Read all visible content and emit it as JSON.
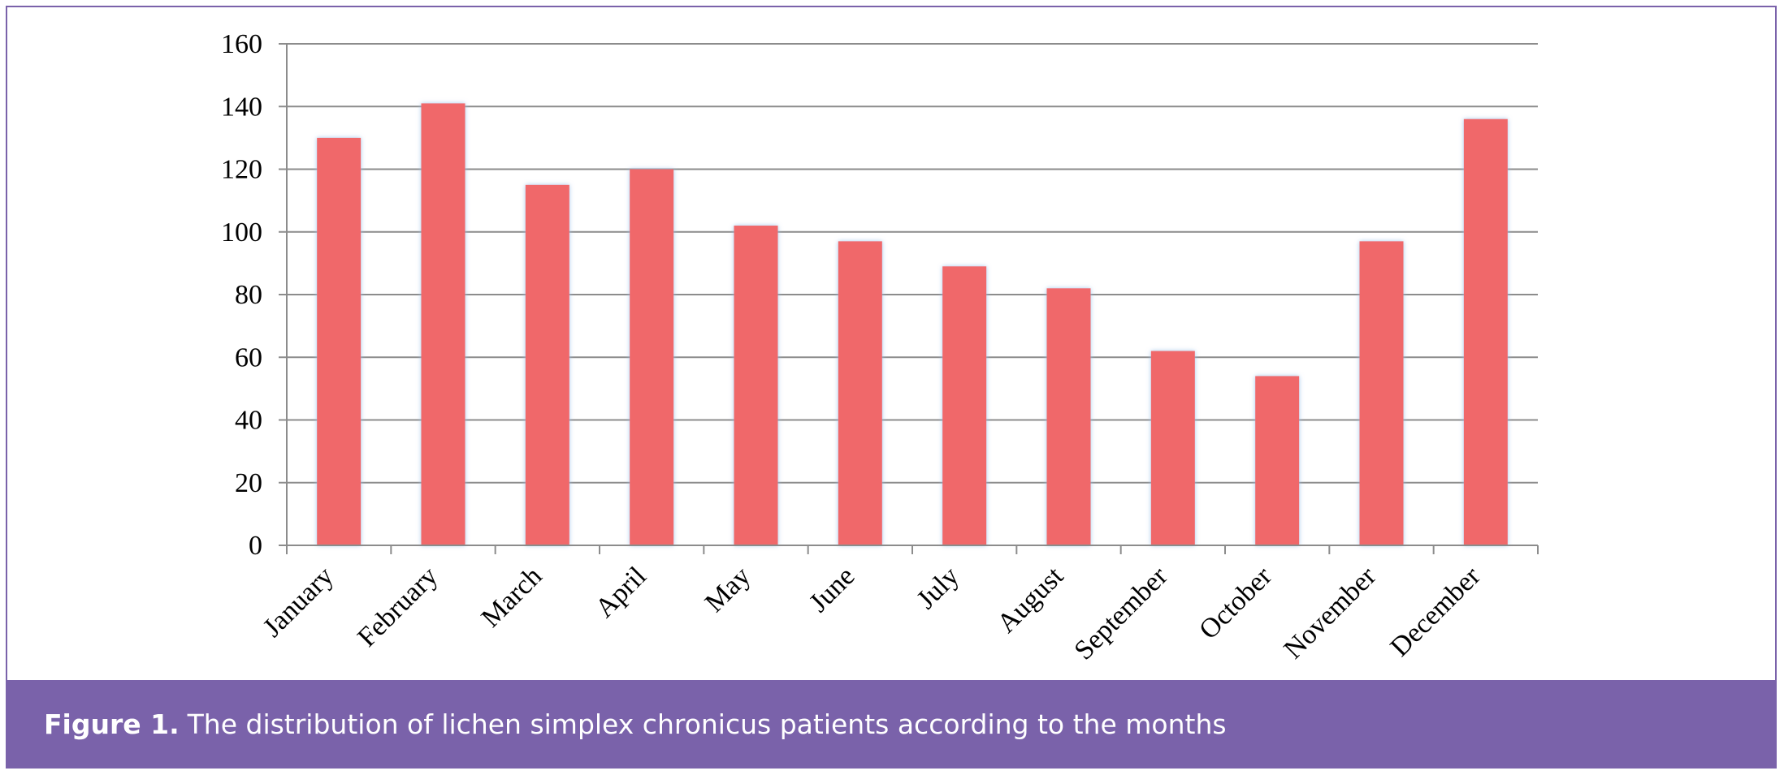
{
  "caption": {
    "label": "Figure 1.",
    "text": "The distribution of lichen simplex chronicus patients according to the months"
  },
  "colors": {
    "bar": "#f0676a",
    "frame": "#7a62aa",
    "grid": "#8c8c8c",
    "axis": "#8c8c8c"
  },
  "chart_data": {
    "type": "bar",
    "categories": [
      "January",
      "February",
      "March",
      "April",
      "May",
      "June",
      "July",
      "August",
      "September",
      "October",
      "November",
      "December"
    ],
    "values": [
      130,
      141,
      115,
      120,
      102,
      97,
      89,
      82,
      62,
      54,
      97,
      136
    ],
    "ylim": [
      0,
      160
    ],
    "yticks": [
      0,
      20,
      40,
      60,
      80,
      100,
      120,
      140,
      160
    ],
    "grid": true
  }
}
